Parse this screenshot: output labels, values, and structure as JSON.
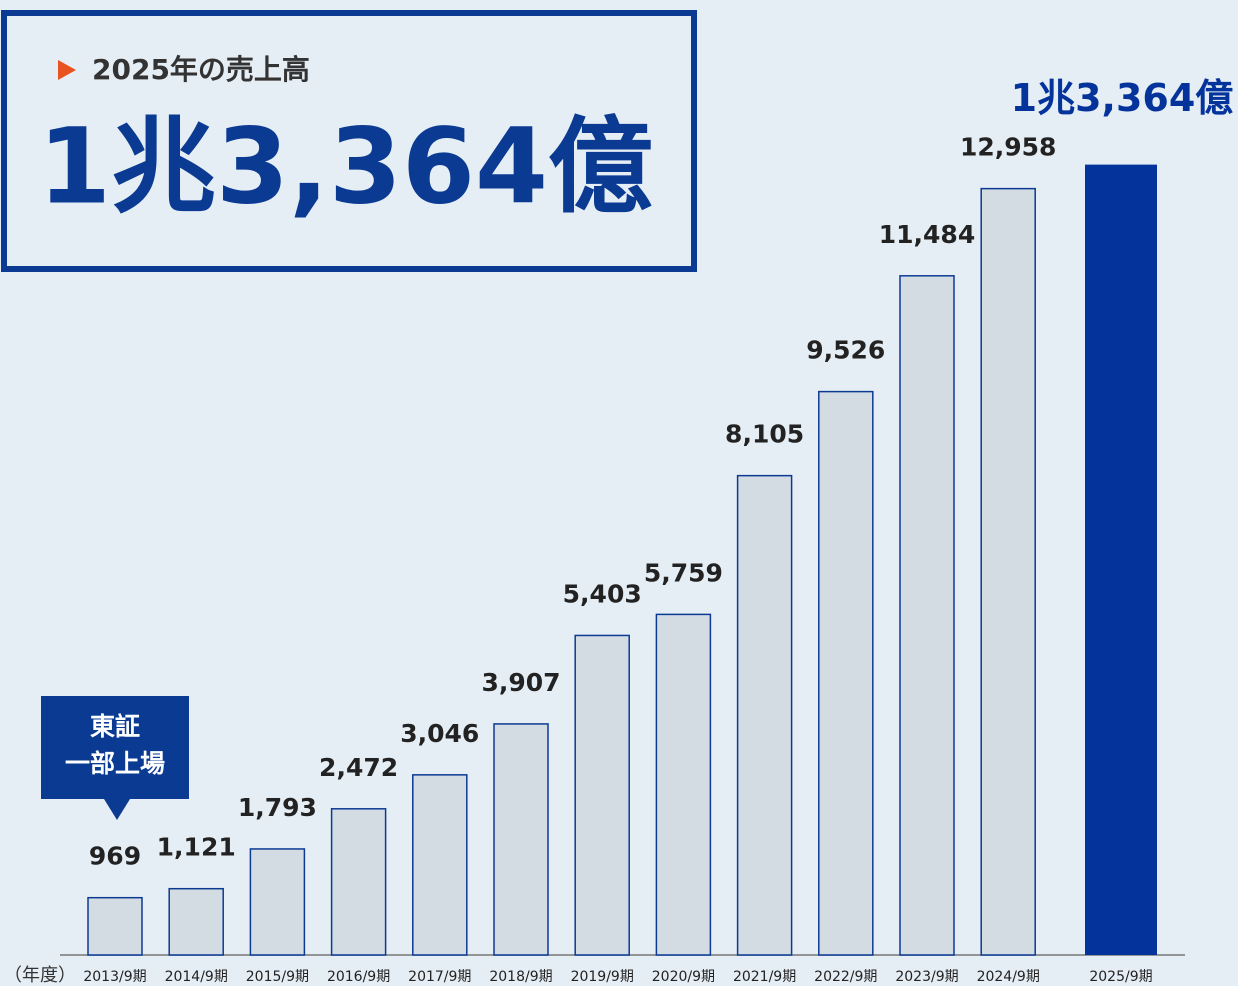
{
  "chart_data": {
    "type": "bar",
    "headline": "2025年の売上高",
    "annotation": [
      "東証",
      "一部上場"
    ],
    "x_label": "（年度）",
    "categories": [
      "2013/9期",
      "2014/9期",
      "2015/9期",
      "2016/9期",
      "2017/9期",
      "2018/9期",
      "2019/9期",
      "2020/9期",
      "2021/9期",
      "2022/9期",
      "2023/9期",
      "2024/9期",
      "2025/9期"
    ],
    "values": [
      969,
      1121,
      1793,
      2472,
      3046,
      3907,
      5403,
      5759,
      8105,
      9526,
      11484,
      12958,
      13364
    ],
    "value_labels": [
      "969",
      "1,121",
      "1,793",
      "2,472",
      "3,046",
      "3,907",
      "5,403",
      "5,759",
      "8,105",
      "9,526",
      "11,484",
      "12,958",
      "1兆3,364億"
    ],
    "colors": [
      "#d4dce3",
      "#d4dce3",
      "#d4dce3",
      "#d4dce3",
      "#d4dce3",
      "#d4dce3",
      "#d4dce3",
      "#d4dce3",
      "#d4dce3",
      "#d4dce3",
      "#d4dce3",
      "#d4dce3",
      "#05339c"
    ],
    "edge_color": "#0b3a93",
    "ylim": [
      0,
      14000
    ]
  }
}
